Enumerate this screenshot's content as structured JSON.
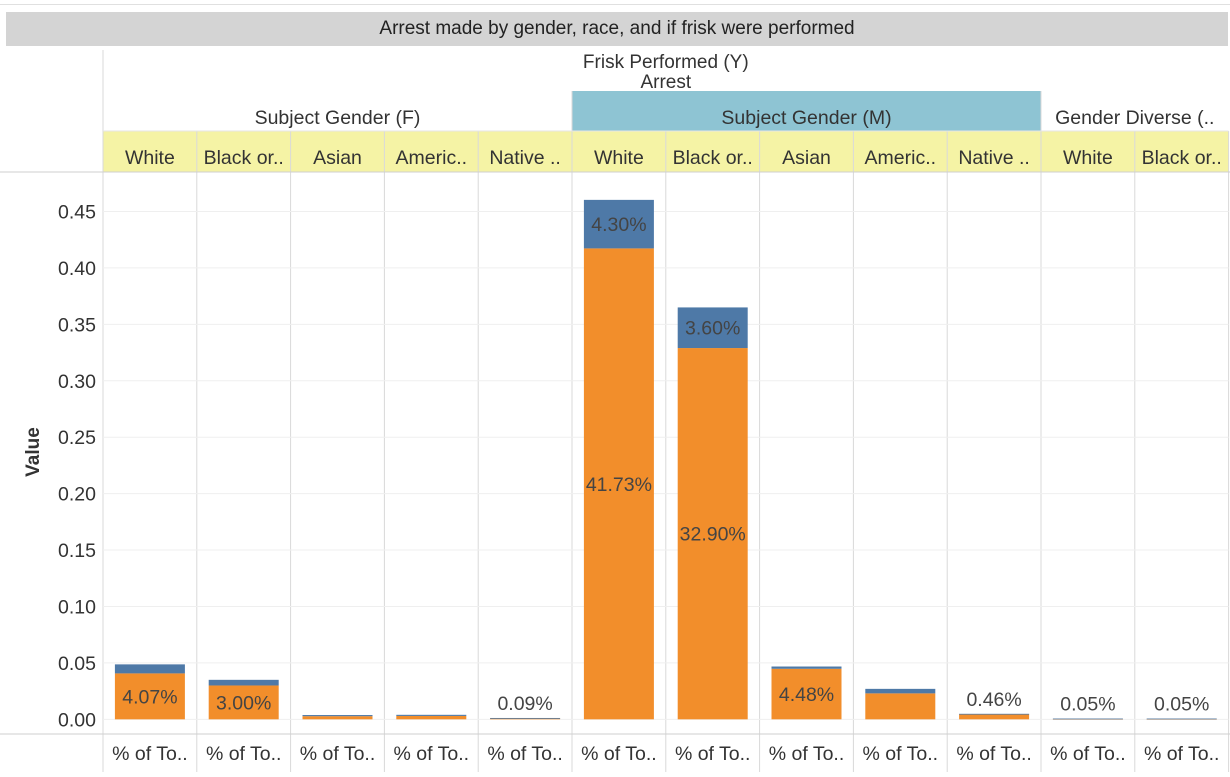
{
  "header": {
    "title": "Arrest made by gender, race, and if frisk were performed",
    "frisk_label": "Frisk Performed (Y)",
    "arrest_label": "Arrest"
  },
  "colors": {
    "arrest_yes": "#f28e2b",
    "arrest_no": "#4e79a7",
    "race_header_bg": "#f5f3a5",
    "highlight_gender_bg": "#8ec4d3",
    "title_bg": "#d4d4d4"
  },
  "chart_data": {
    "type": "bar",
    "stacked": true,
    "ylabel": "Value",
    "ylim": [
      -0.013,
      0.485
    ],
    "yticks": [
      0.0,
      0.05,
      0.1,
      0.15,
      0.2,
      0.25,
      0.3,
      0.35,
      0.4,
      0.45
    ],
    "ytick_labels": [
      "0.00",
      "0.05",
      "0.10",
      "0.15",
      "0.20",
      "0.25",
      "0.30",
      "0.35",
      "0.40",
      "0.45"
    ],
    "grid": true,
    "gender_groups": [
      {
        "label": "Subject Gender (F)",
        "span": 5,
        "highlight": false
      },
      {
        "label": "Subject Gender (M)",
        "span": 5,
        "highlight": true
      },
      {
        "label": "Gender Diverse (..",
        "span": 2,
        "highlight": false
      }
    ],
    "categories": [
      "White",
      "Black or..",
      "Asian",
      "Americ..",
      "Native ..",
      "White",
      "Black or..",
      "Asian",
      "Americ..",
      "Native ..",
      "White",
      "Black or.."
    ],
    "measure_labels": [
      "% of To..",
      "% of To..",
      "% of To..",
      "% of To..",
      "% of To..",
      "% of To..",
      "% of To..",
      "% of To..",
      "% of To..",
      "% of To..",
      "% of To..",
      "% of To.."
    ],
    "series": [
      {
        "values": [
          0.0407,
          0.03,
          0.0028,
          0.003,
          0.0009,
          0.4173,
          0.329,
          0.0448,
          0.023,
          0.0046,
          0.0005,
          0.0005
        ],
        "labels": [
          "4.07%",
          "3.00%",
          "",
          "",
          "0.09%",
          "41.73%",
          "32.90%",
          "4.48%",
          "",
          "0.46%",
          "0.05%",
          "0.05%"
        ],
        "color": "#f28e2b"
      },
      {
        "values": [
          0.008,
          0.005,
          0.001,
          0.001,
          0.0003,
          0.043,
          0.036,
          0.002,
          0.004,
          0.0003,
          0.0002,
          0.0002
        ],
        "labels": [
          "",
          "",
          "",
          "",
          "",
          "4.30%",
          "3.60%",
          "",
          "",
          "",
          "",
          ""
        ],
        "color": "#4e79a7"
      }
    ]
  }
}
